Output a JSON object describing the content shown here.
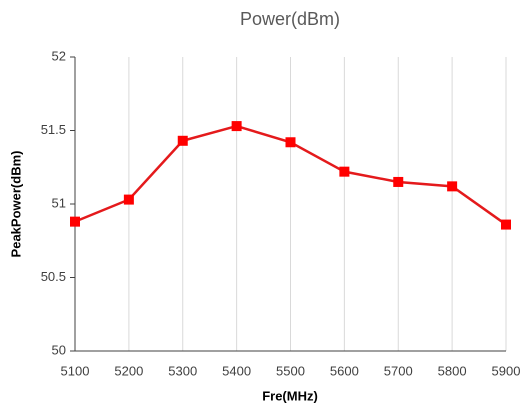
{
  "chart_data": {
    "type": "line",
    "title": "Power(dBm)",
    "x_label": "Fre(MHz)",
    "y_label": "PeakPower(dBm)",
    "x": [
      5100,
      5200,
      5300,
      5400,
      5500,
      5600,
      5700,
      5800,
      5900
    ],
    "series": [
      {
        "name": "PeakPower(dBm)",
        "color": "#e41a1c",
        "marker_color": "#ff0000",
        "values": [
          50.88,
          51.03,
          51.43,
          51.53,
          51.42,
          51.22,
          51.15,
          51.12,
          50.86
        ]
      }
    ],
    "xlim": [
      5100,
      5900
    ],
    "xticks": [
      5100,
      5200,
      5300,
      5400,
      5500,
      5600,
      5700,
      5800,
      5900
    ],
    "ylim": [
      50,
      52
    ],
    "yticks": [
      50,
      50.5,
      51,
      51.5,
      52
    ],
    "grid": true
  }
}
